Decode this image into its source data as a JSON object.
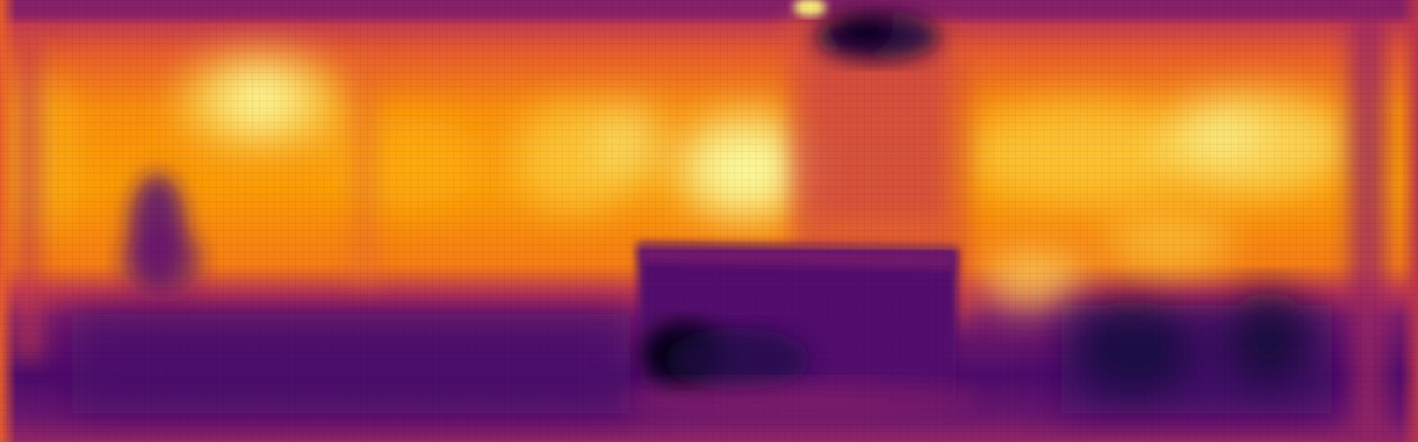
{
  "image": {
    "kind": "depth-map",
    "colormap": "inferno",
    "colors": {
      "darkest": "#000004",
      "dark": "#420a68",
      "mid": "#932667",
      "warm": "#dd513a",
      "bright": "#fca50a",
      "lightest": "#fcffa4"
    }
  }
}
